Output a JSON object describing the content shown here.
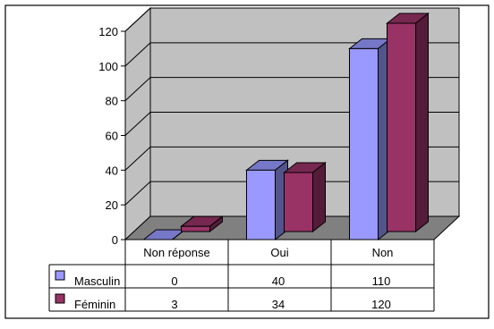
{
  "chart_data": {
    "type": "bar",
    "three_d": true,
    "categories": [
      "Non réponse",
      "Oui",
      "Non"
    ],
    "series": [
      {
        "name": "Masculin",
        "values": [
          0,
          40,
          110
        ],
        "color": "#9999ff"
      },
      {
        "name": "Féminin",
        "values": [
          3,
          34,
          120
        ],
        "color": "#993366"
      }
    ],
    "y_ticks": [
      "0",
      "20",
      "40",
      "60",
      "80",
      "100",
      "120"
    ],
    "ylim": [
      0,
      120
    ],
    "grid": true,
    "legend": "data-table",
    "data_table": {
      "rows": [
        {
          "label": "Masculin",
          "values": [
            "0",
            "40",
            "110"
          ]
        },
        {
          "label": "Féminin",
          "values": [
            "3",
            "34",
            "120"
          ]
        }
      ]
    },
    "colors": {
      "wall": "#c0c0c0",
      "floor": "#808080",
      "grid": "#000000"
    }
  }
}
